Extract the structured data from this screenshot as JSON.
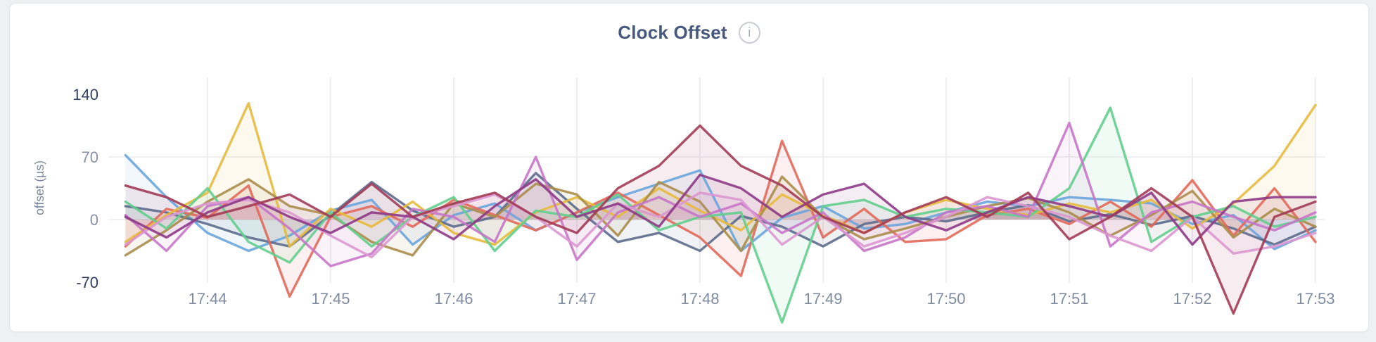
{
  "header": {
    "info_glyph": "i"
  },
  "colors": {
    "title": "#46587c",
    "axis_tick_dark": "#2e3e62",
    "axis_tick_light": "#8691a7",
    "x_tick": "#7f8ba0",
    "grid_vertical": "#e9e9ec",
    "grid_horizontal": "#ececef",
    "card_background": "#ffffff",
    "page_background": "#eef0f2"
  },
  "chart_data": {
    "type": "line",
    "title": "Clock Offset",
    "ylabel": "offset (µs)",
    "xlabel": "",
    "x_ticks": [
      "17:44",
      "17:45",
      "17:46",
      "17:47",
      "17:48",
      "17:49",
      "17:50",
      "17:51",
      "17:52",
      "17:53"
    ],
    "y_ticks": [
      140,
      70,
      0,
      -70
    ],
    "ylim": [
      -120,
      160
    ],
    "grid": "on",
    "legend": "none",
    "x_start": "17:43:20",
    "x_step_seconds": 20,
    "unit": "µs",
    "series": [
      {
        "name": "series-1-blue",
        "color": "#6aa5db",
        "values": [
          72,
          25,
          -15,
          -35,
          -18,
          10,
          22,
          -28,
          5,
          18,
          -12,
          8,
          25,
          40,
          55,
          -35,
          2,
          15,
          -10,
          -5,
          8,
          20,
          15,
          25,
          22,
          18,
          -5,
          5,
          -33,
          -12
        ]
      },
      {
        "name": "series-2-slate",
        "color": "#5c6b8c",
        "values": [
          15,
          8,
          -5,
          -20,
          -30,
          5,
          42,
          10,
          -8,
          3,
          52,
          12,
          -25,
          -15,
          -35,
          4,
          -8,
          -30,
          -5,
          3,
          -2,
          8,
          16,
          -2,
          6,
          -6,
          4,
          -10,
          -28,
          -8
        ]
      },
      {
        "name": "series-3-salmon",
        "color": "#e2695b",
        "values": [
          -30,
          12,
          2,
          38,
          -86,
          3,
          15,
          -8,
          22,
          5,
          -12,
          8,
          30,
          5,
          -20,
          -63,
          88,
          -20,
          12,
          -25,
          -22,
          5,
          12,
          -5,
          20,
          -8,
          44,
          -18,
          35,
          -25
        ]
      },
      {
        "name": "series-4-gold",
        "color": "#e7ba3d",
        "values": [
          -25,
          5,
          30,
          130,
          -30,
          12,
          -8,
          20,
          -15,
          -28,
          8,
          25,
          3,
          35,
          10,
          -12,
          28,
          5,
          -15,
          8,
          22,
          12,
          5,
          18,
          8,
          22,
          -10,
          18,
          60,
          128
        ]
      },
      {
        "name": "series-5-olive",
        "color": "#ab8d4b",
        "values": [
          -40,
          -12,
          20,
          45,
          15,
          5,
          -25,
          -40,
          18,
          3,
          40,
          28,
          -18,
          42,
          20,
          -35,
          48,
          3,
          -22,
          -10,
          3,
          15,
          24,
          8,
          -18,
          5,
          32,
          -20,
          12,
          -8
        ]
      },
      {
        "name": "series-6-green",
        "color": "#63ce8d",
        "values": [
          20,
          -10,
          35,
          -25,
          -48,
          8,
          -30,
          3,
          25,
          -35,
          10,
          3,
          28,
          -12,
          3,
          8,
          -115,
          15,
          22,
          3,
          12,
          8,
          3,
          35,
          125,
          -25,
          3,
          15,
          -8,
          3
        ]
      },
      {
        "name": "series-7-orchid",
        "color": "#c875c8",
        "values": [
          5,
          -35,
          15,
          25,
          -10,
          -52,
          -38,
          12,
          3,
          -25,
          70,
          -45,
          8,
          25,
          3,
          18,
          -15,
          8,
          -35,
          -20,
          8,
          15,
          3,
          108,
          -30,
          8,
          20,
          3,
          -12,
          8
        ]
      },
      {
        "name": "series-8-pink",
        "color": "#db97d0",
        "values": [
          -28,
          3,
          18,
          22,
          8,
          -18,
          -42,
          3,
          15,
          28,
          3,
          -30,
          18,
          3,
          30,
          22,
          -28,
          3,
          -30,
          -15,
          3,
          25,
          15,
          3,
          -18,
          -35,
          3,
          -38,
          -30,
          -15
        ]
      },
      {
        "name": "series-9-plum",
        "color": "#8e3a86",
        "values": [
          3,
          -20,
          8,
          25,
          3,
          -15,
          8,
          3,
          -22,
          15,
          45,
          3,
          18,
          -8,
          50,
          35,
          3,
          28,
          40,
          3,
          -12,
          8,
          25,
          15,
          3,
          30,
          -28,
          20,
          25,
          25
        ]
      },
      {
        "name": "series-10-maroon",
        "color": "#a23b56",
        "values": [
          38,
          25,
          3,
          15,
          28,
          3,
          40,
          3,
          18,
          30,
          3,
          -15,
          35,
          60,
          105,
          60,
          38,
          3,
          -15,
          8,
          25,
          3,
          30,
          -22,
          3,
          35,
          3,
          -105,
          3,
          20
        ]
      }
    ]
  }
}
